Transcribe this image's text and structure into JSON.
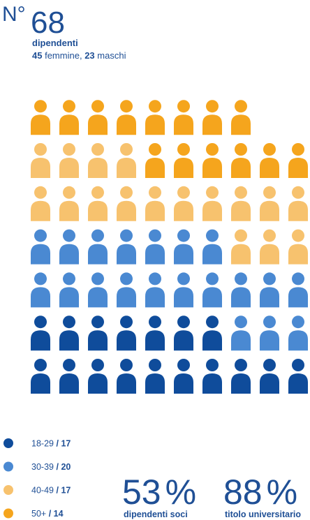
{
  "header": {
    "prefix": "N°",
    "number": 68,
    "label": "dipendenti",
    "women": 45,
    "women_label": "femmine,",
    "men": 23,
    "men_label": "maschi"
  },
  "groups": [
    {
      "label": "18-29",
      "separator": "/",
      "count": 17,
      "color": "#0f4c9b"
    },
    {
      "label": "30-39",
      "separator": "/",
      "count": 20,
      "color": "#4a89d2"
    },
    {
      "label": "40-49",
      "separator": "/",
      "count": 17,
      "color": "#f7c26e"
    },
    {
      "label": "50+",
      "separator": "/",
      "count": 14,
      "color": "#f5a51d"
    }
  ],
  "stats": [
    {
      "value": 53,
      "unit": "%",
      "label": "dipendenti soci"
    },
    {
      "value": 88,
      "unit": "%",
      "label": "titolo universitario"
    }
  ]
}
